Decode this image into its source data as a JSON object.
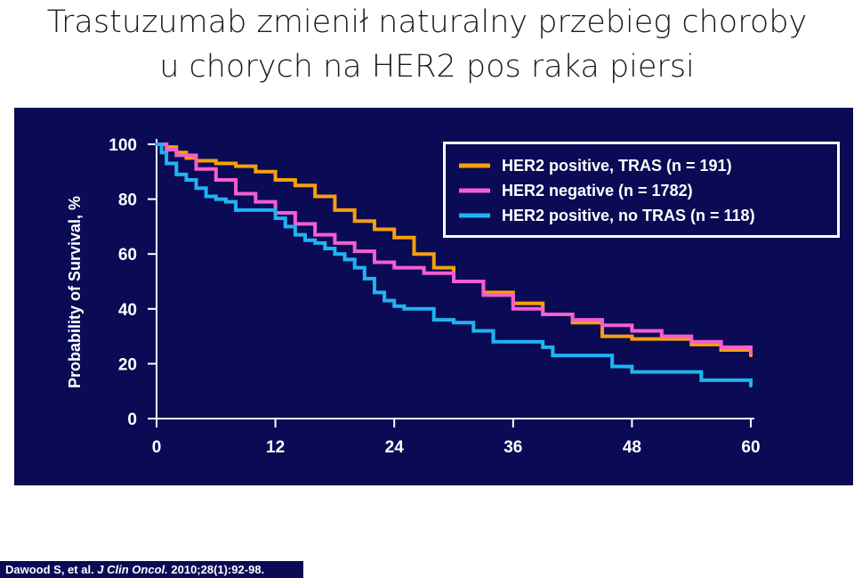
{
  "slide": {
    "title_line1": "Trastuzumab zmienił naturalny przebieg choroby",
    "title_line2": "u chorych na HER2 pos raka piersi"
  },
  "citation": {
    "authors": "Dawood S, et al. ",
    "journal": "J Clin Oncol.",
    "details": " 2010;28(1):92-98."
  },
  "colors": {
    "panel_background": "#0a0a55",
    "axis": "#ffffff",
    "her2_pos_tras": "#f5a00c",
    "her2_neg": "#f45ed0",
    "her2_pos_no_tras": "#1fb4f0"
  },
  "chart_data": {
    "type": "line",
    "title": "",
    "xlabel": "",
    "ylabel": "Probability of Survival, %",
    "xlim": [
      0,
      60
    ],
    "ylim": [
      0,
      100
    ],
    "x_ticks": [
      0,
      12,
      24,
      36,
      48,
      60
    ],
    "y_ticks": [
      0,
      20,
      40,
      60,
      80,
      100
    ],
    "grid": false,
    "legend_position": "top-right",
    "series": [
      {
        "name": "HER2 positive, TRAS (n = 191)",
        "color": "#f5a00c",
        "x": [
          0,
          1,
          2,
          3,
          4,
          6,
          8,
          10,
          12,
          14,
          16,
          18,
          20,
          22,
          24,
          26,
          28,
          30,
          33,
          36,
          39,
          42,
          45,
          48,
          51,
          54,
          57,
          60
        ],
        "y": [
          100,
          99,
          97,
          95,
          94,
          93,
          92,
          90,
          87,
          85,
          81,
          76,
          72,
          69,
          66,
          60,
          55,
          50,
          46,
          42,
          38,
          35,
          30,
          29,
          29,
          27,
          25,
          23
        ]
      },
      {
        "name": "HER2 negative (n = 1782)",
        "color": "#f45ed0",
        "x": [
          0,
          1,
          2,
          4,
          6,
          8,
          10,
          12,
          14,
          16,
          18,
          20,
          22,
          24,
          27,
          30,
          33,
          36,
          39,
          42,
          45,
          48,
          51,
          54,
          57,
          60
        ],
        "y": [
          100,
          98,
          96,
          91,
          87,
          82,
          79,
          75,
          71,
          67,
          64,
          61,
          57,
          55,
          53,
          50,
          45,
          40,
          38,
          36,
          34,
          32,
          30,
          28,
          26,
          24
        ]
      },
      {
        "name": "HER2 positive, no TRAS (n = 118)",
        "color": "#1fb4f0",
        "x": [
          0,
          0.5,
          1,
          2,
          3,
          4,
          5,
          6,
          7,
          8,
          10,
          12,
          13,
          14,
          15,
          16,
          17,
          18,
          19,
          20,
          21,
          22,
          23,
          24,
          25,
          26,
          28,
          30,
          32,
          34,
          36,
          38,
          39,
          40,
          42,
          44,
          46,
          48,
          51,
          54,
          55,
          57,
          59,
          60
        ],
        "y": [
          100,
          97,
          93,
          89,
          87,
          84,
          81,
          80,
          79,
          76,
          76,
          73,
          70,
          67,
          65,
          64,
          62,
          60,
          58,
          55,
          51,
          46,
          43,
          41,
          40,
          40,
          36,
          35,
          32,
          28,
          28,
          28,
          26,
          23,
          23,
          23,
          19,
          17,
          17,
          17,
          14,
          14,
          14,
          12
        ]
      }
    ]
  }
}
